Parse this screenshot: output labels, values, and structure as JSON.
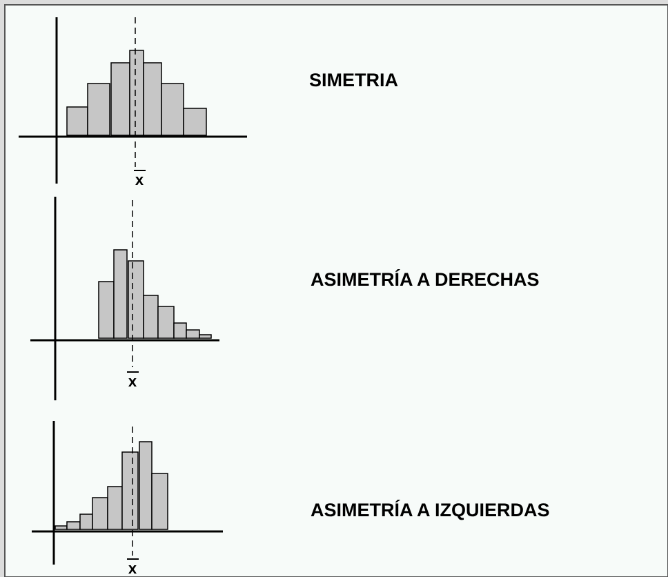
{
  "panels": [
    {
      "label": "SIMETRIA",
      "mean_label": "x"
    },
    {
      "label": "ASIMETRÍA A DERECHAS",
      "mean_label": "x"
    },
    {
      "label": "ASIMETRÍA A IZQUIERDAS",
      "mean_label": "x"
    }
  ]
}
